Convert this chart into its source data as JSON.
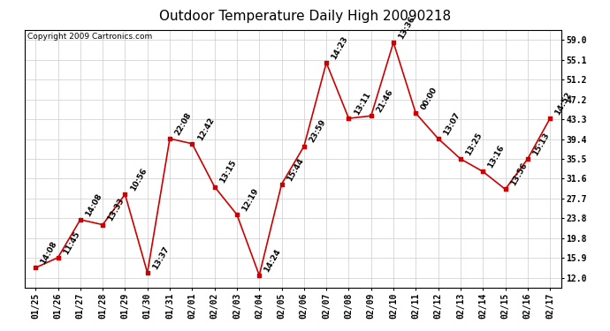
{
  "title": "Outdoor Temperature Daily High 20090218",
  "copyright": "Copyright 2009 Cartronics.com",
  "dates": [
    "01/25",
    "01/26",
    "01/27",
    "01/28",
    "01/29",
    "01/30",
    "01/31",
    "02/01",
    "02/02",
    "02/03",
    "02/04",
    "02/05",
    "02/06",
    "02/07",
    "02/08",
    "02/09",
    "02/10",
    "02/11",
    "02/12",
    "02/13",
    "02/14",
    "02/15",
    "02/16",
    "02/17"
  ],
  "values": [
    14.0,
    16.0,
    23.5,
    22.5,
    28.5,
    13.0,
    39.5,
    38.5,
    30.0,
    24.5,
    12.5,
    30.5,
    38.0,
    54.5,
    43.5,
    44.0,
    58.5,
    44.5,
    39.5,
    35.5,
    33.0,
    29.5,
    35.5,
    43.5
  ],
  "labels": [
    "14:08",
    "11:45",
    "14:08",
    "13:33",
    "10:56",
    "13:37",
    "22:08",
    "12:42",
    "13:15",
    "12:19",
    "14:24",
    "15:44",
    "23:59",
    "14:23",
    "13:11",
    "21:46",
    "13:36",
    "00:00",
    "13:07",
    "13:25",
    "13:16",
    "13:56",
    "15:13",
    "14:52"
  ],
  "line_color": "#cc0000",
  "marker_color": "#cc0000",
  "background_color": "#ffffff",
  "grid_color": "#cccccc",
  "yticks": [
    12.0,
    15.9,
    19.8,
    23.8,
    27.7,
    31.6,
    35.5,
    39.4,
    43.3,
    47.2,
    51.2,
    55.1,
    59.0
  ],
  "ylim": [
    10.0,
    61.0
  ],
  "title_fontsize": 11,
  "label_fontsize": 6.5,
  "xlabel_fontsize": 7,
  "ylabel_fontsize": 7
}
